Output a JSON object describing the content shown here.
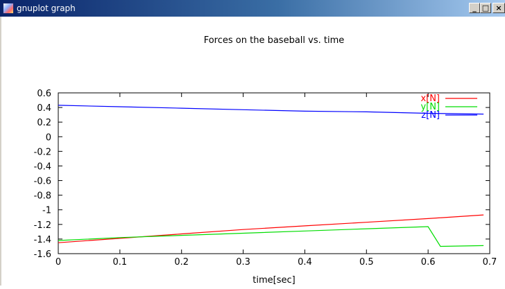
{
  "window": {
    "title": "gnuplot graph",
    "icon": "gnuplot-app-icon",
    "buttons": {
      "minimize": "_",
      "maximize": "□",
      "close": "×"
    }
  },
  "chart_data": {
    "type": "line",
    "title": "Forces on the baseball vs. time",
    "xlabel": "time[sec]",
    "ylabel": "",
    "xlim": [
      0,
      0.7
    ],
    "ylim": [
      -1.6,
      0.6
    ],
    "xticks": [
      "0",
      "0.1",
      "0.2",
      "0.3",
      "0.4",
      "0.5",
      "0.6",
      "0.7"
    ],
    "yticks": [
      "0.6",
      "0.4",
      "0.2",
      "0",
      "-0.2",
      "-0.4",
      "-0.6",
      "-0.8",
      "-1",
      "-1.2",
      "-1.4",
      "-1.6"
    ],
    "grid": false,
    "legend_position": "top-right",
    "series": [
      {
        "name": "x[N]",
        "color": "#ff0000",
        "x": [
          0,
          0.1,
          0.2,
          0.3,
          0.4,
          0.5,
          0.6,
          0.69
        ],
        "y": [
          -1.45,
          -1.39,
          -1.33,
          -1.27,
          -1.22,
          -1.17,
          -1.12,
          -1.07
        ]
      },
      {
        "name": "y[N]",
        "color": "#00dd00",
        "x": [
          0,
          0.1,
          0.2,
          0.3,
          0.4,
          0.5,
          0.6,
          0.62,
          0.69
        ],
        "y": [
          -1.42,
          -1.38,
          -1.35,
          -1.32,
          -1.29,
          -1.26,
          -1.23,
          -1.5,
          -1.49
        ]
      },
      {
        "name": "z[N]",
        "color": "#0000ff",
        "x": [
          0,
          0.1,
          0.2,
          0.3,
          0.4,
          0.5,
          0.6,
          0.69
        ],
        "y": [
          0.43,
          0.41,
          0.39,
          0.37,
          0.35,
          0.34,
          0.32,
          0.31
        ]
      }
    ]
  }
}
